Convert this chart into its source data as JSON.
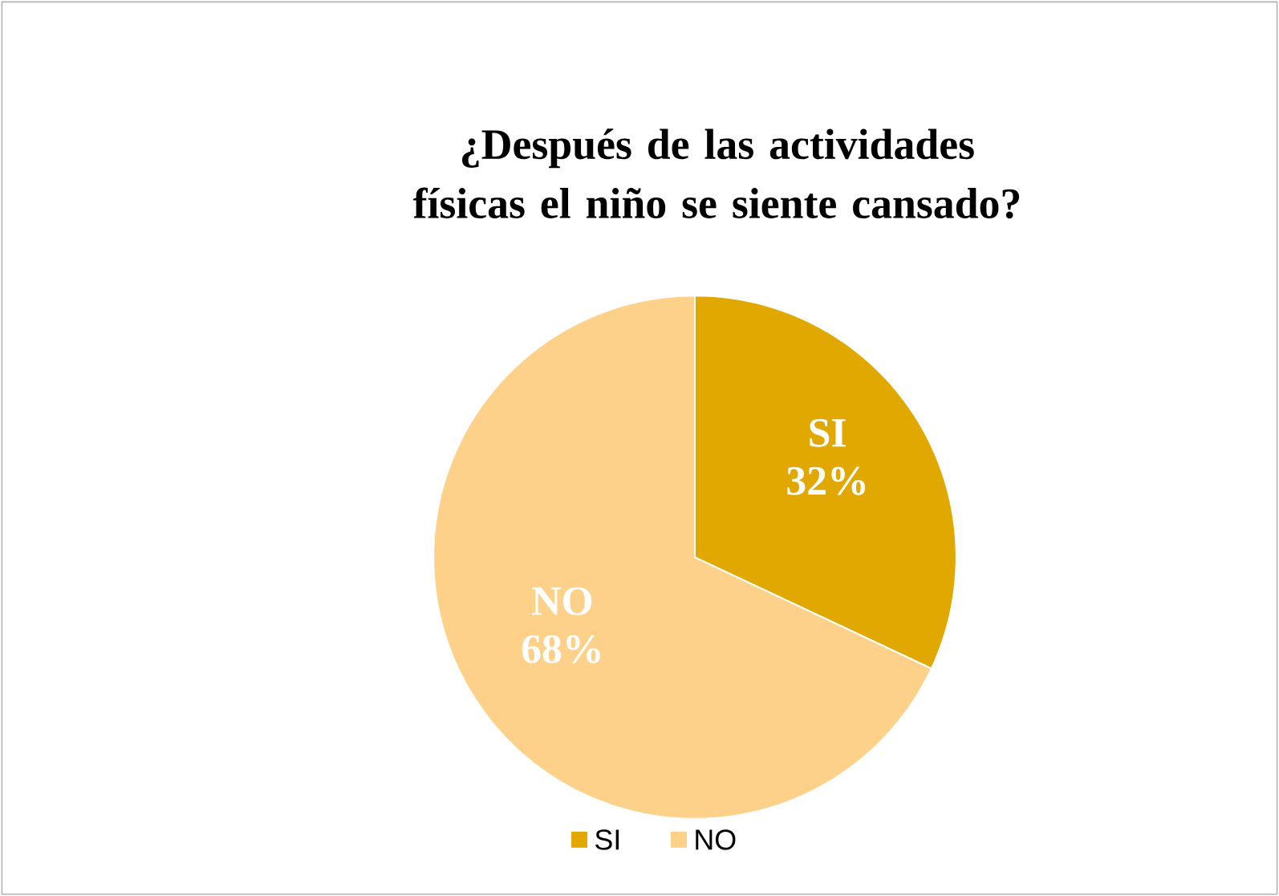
{
  "chart_data": {
    "type": "pie",
    "title": "¿Después de las actividades físicas el niño se siente cansado?",
    "categories": [
      "SI",
      "NO"
    ],
    "values": [
      32,
      68
    ],
    "value_labels": [
      "32%",
      "68%"
    ],
    "colors": [
      "#e0a800",
      "#fdd18a"
    ],
    "legend": "bottom"
  }
}
